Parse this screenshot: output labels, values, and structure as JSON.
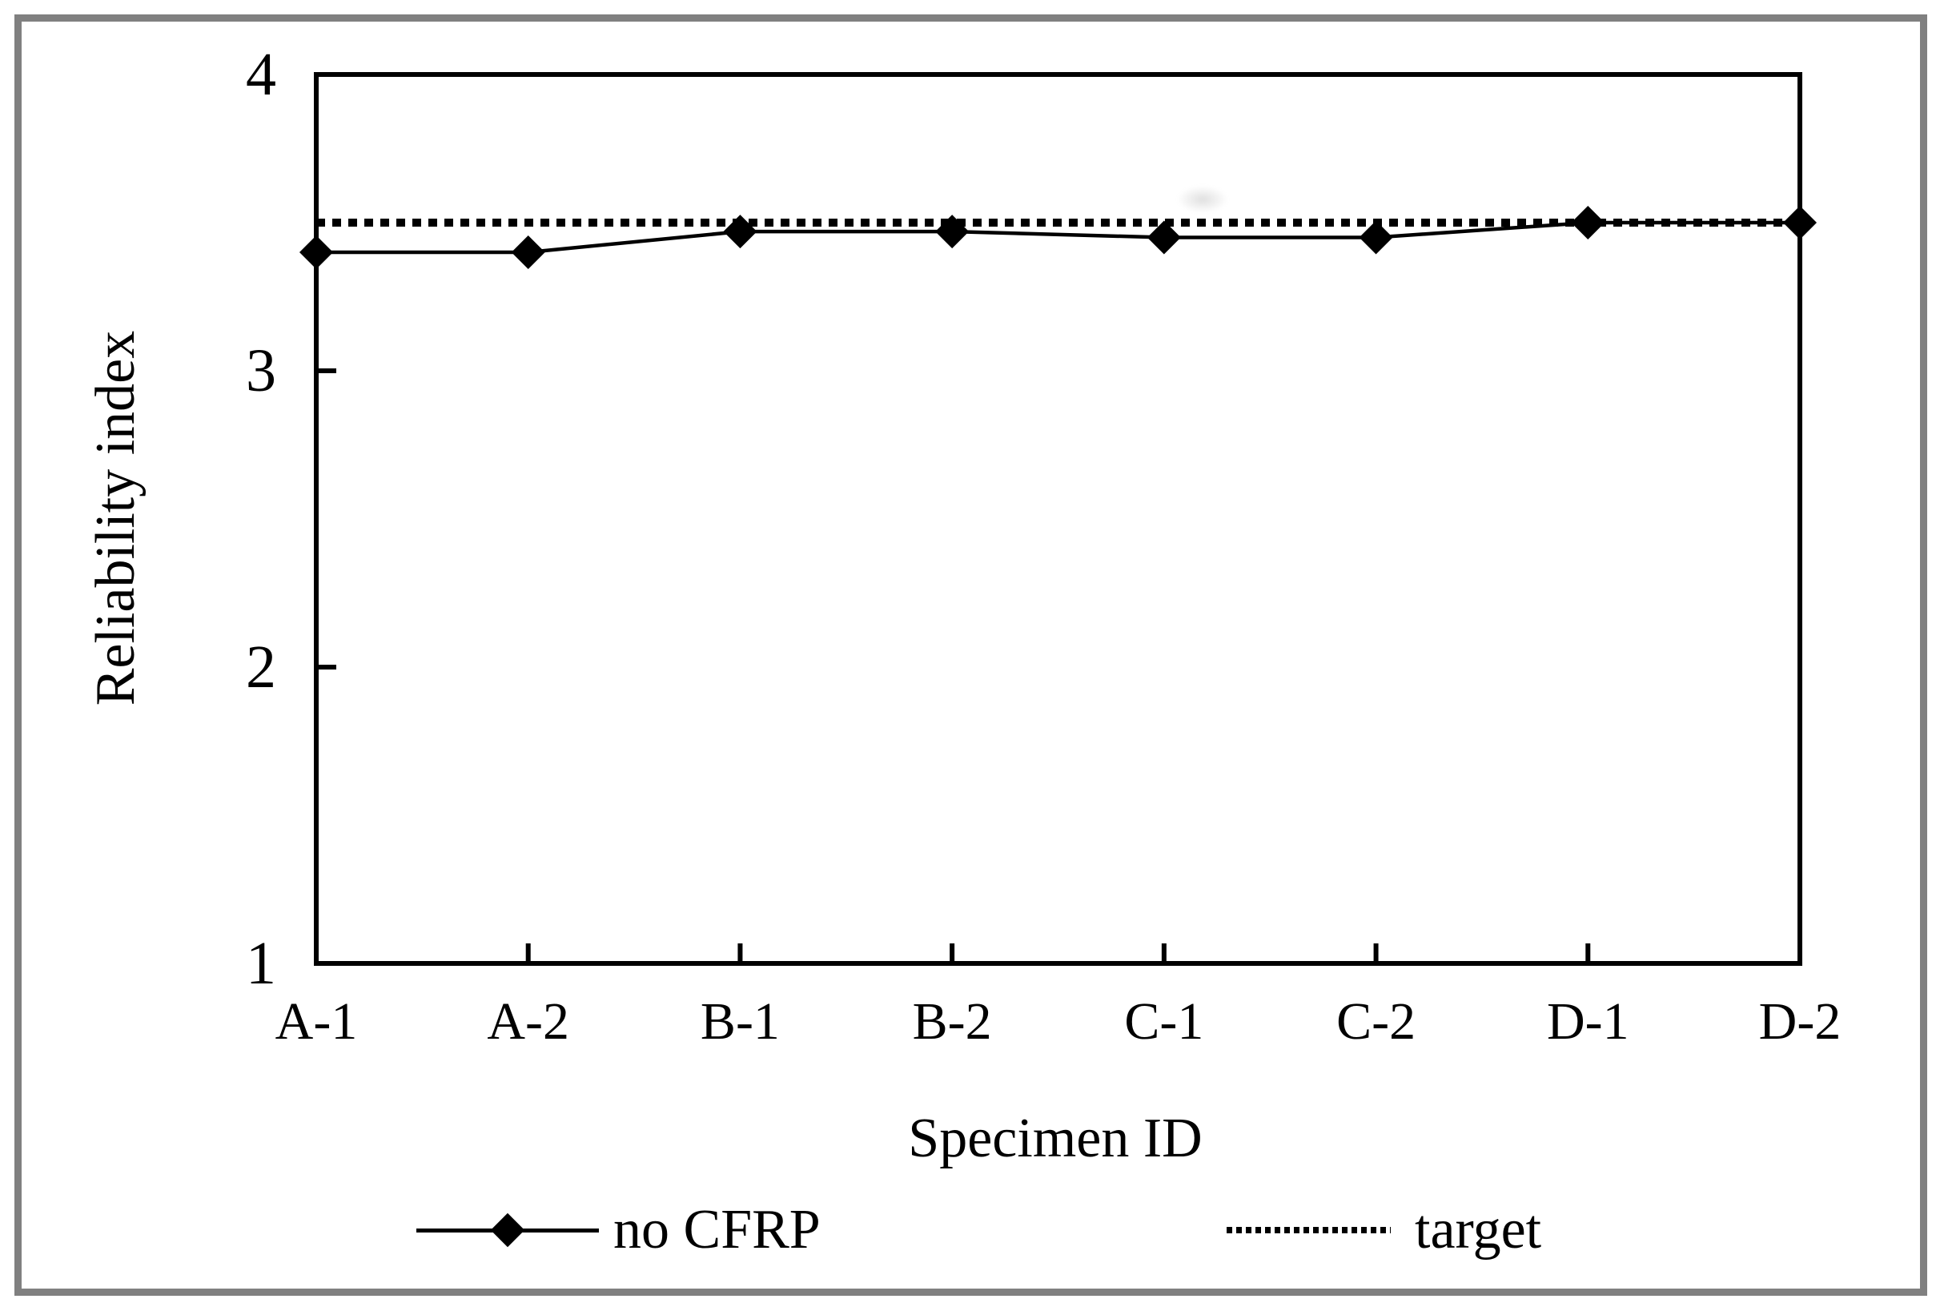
{
  "chart_data": {
    "type": "line",
    "title": "",
    "xlabel": "Specimen ID",
    "ylabel": "Reliability index",
    "categories": [
      "A-1",
      "A-2",
      "B-1",
      "B-2",
      "C-1",
      "C-2",
      "D-1",
      "D-2"
    ],
    "series": [
      {
        "name": "no CFRP",
        "style": "solid-diamond",
        "values": [
          3.4,
          3.4,
          3.47,
          3.47,
          3.45,
          3.45,
          3.5,
          3.5
        ]
      },
      {
        "name": "target",
        "style": "dotted",
        "type": "constant",
        "value": 3.5
      }
    ],
    "ylim": [
      1,
      4
    ],
    "yticks": [
      1,
      2,
      3,
      4
    ],
    "ytick_labels": [
      "1",
      "2",
      "3",
      "4"
    ],
    "grid": false,
    "legend_position": "bottom"
  },
  "legend": {
    "series1_label": "no CFRP",
    "series2_label": "target"
  },
  "colors": {
    "series": "#000000",
    "frame_border": "#808080",
    "background": "#ffffff"
  }
}
